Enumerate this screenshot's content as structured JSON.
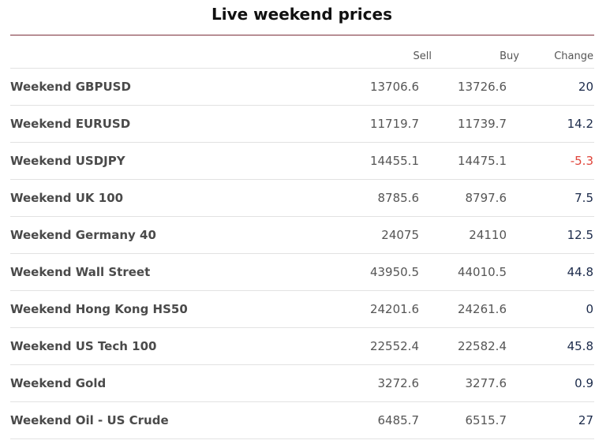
{
  "title": "Live weekend prices",
  "columns": {
    "sell": "Sell",
    "buy": "Buy",
    "change": "Change"
  },
  "colors": {
    "accent_rule": "#7a2e3a",
    "positive_change": "#1b2a4a",
    "negative_change": "#e0443a"
  },
  "rows": [
    {
      "name": "Weekend GBPUSD",
      "sell": "13706.6",
      "buy": "13726.6",
      "change": "20"
    },
    {
      "name": "Weekend EURUSD",
      "sell": "11719.7",
      "buy": "11739.7",
      "change": "14.2"
    },
    {
      "name": "Weekend USDJPY",
      "sell": "14455.1",
      "buy": "14475.1",
      "change": "-5.3"
    },
    {
      "name": "Weekend UK 100",
      "sell": "8785.6",
      "buy": "8797.6",
      "change": "7.5"
    },
    {
      "name": "Weekend Germany 40",
      "sell": "24075",
      "buy": "24110",
      "change": "12.5"
    },
    {
      "name": "Weekend Wall Street",
      "sell": "43950.5",
      "buy": "44010.5",
      "change": "44.8"
    },
    {
      "name": "Weekend Hong Kong HS50",
      "sell": "24201.6",
      "buy": "24261.6",
      "change": "0"
    },
    {
      "name": "Weekend US Tech 100",
      "sell": "22552.4",
      "buy": "22582.4",
      "change": "45.8"
    },
    {
      "name": "Weekend Gold",
      "sell": "3272.6",
      "buy": "3277.6",
      "change": "0.9"
    },
    {
      "name": "Weekend Oil - US Crude",
      "sell": "6485.7",
      "buy": "6515.7",
      "change": "27"
    }
  ]
}
